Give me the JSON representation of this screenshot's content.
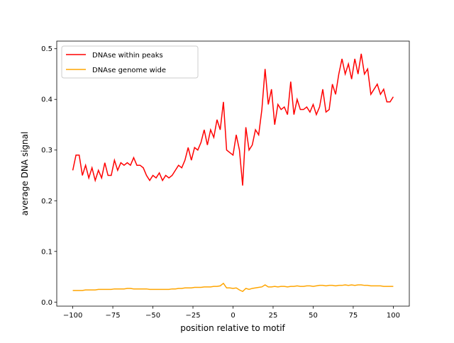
{
  "chart_data": {
    "type": "line",
    "xlabel": "position relative to motif",
    "ylabel": "average DNA signal",
    "x": [
      -100,
      -98,
      -96,
      -94,
      -92,
      -90,
      -88,
      -86,
      -84,
      -82,
      -80,
      -78,
      -76,
      -74,
      -72,
      -70,
      -68,
      -66,
      -64,
      -62,
      -60,
      -58,
      -56,
      -54,
      -52,
      -50,
      -48,
      -46,
      -44,
      -42,
      -40,
      -38,
      -36,
      -34,
      -32,
      -30,
      -28,
      -26,
      -24,
      -22,
      -20,
      -18,
      -16,
      -14,
      -12,
      -10,
      -8,
      -6,
      -4,
      -2,
      0,
      2,
      4,
      6,
      8,
      10,
      12,
      14,
      16,
      18,
      20,
      22,
      24,
      26,
      28,
      30,
      32,
      34,
      36,
      38,
      40,
      42,
      44,
      46,
      48,
      50,
      52,
      54,
      56,
      58,
      60,
      62,
      64,
      66,
      68,
      70,
      72,
      74,
      76,
      78,
      80,
      82,
      84,
      86,
      88,
      90,
      92,
      94,
      96,
      98,
      100
    ],
    "series": [
      {
        "name": "DNAse within peaks",
        "color": "#ff0000",
        "values": [
          0.26,
          0.29,
          0.29,
          0.25,
          0.27,
          0.245,
          0.265,
          0.24,
          0.26,
          0.245,
          0.275,
          0.25,
          0.25,
          0.28,
          0.26,
          0.275,
          0.27,
          0.275,
          0.27,
          0.285,
          0.27,
          0.27,
          0.265,
          0.25,
          0.24,
          0.25,
          0.245,
          0.255,
          0.24,
          0.25,
          0.245,
          0.25,
          0.26,
          0.27,
          0.265,
          0.28,
          0.305,
          0.28,
          0.305,
          0.3,
          0.315,
          0.34,
          0.31,
          0.34,
          0.325,
          0.36,
          0.34,
          0.395,
          0.3,
          0.295,
          0.29,
          0.33,
          0.3,
          0.23,
          0.345,
          0.3,
          0.31,
          0.34,
          0.33,
          0.38,
          0.46,
          0.39,
          0.42,
          0.35,
          0.39,
          0.38,
          0.385,
          0.37,
          0.435,
          0.37,
          0.4,
          0.38,
          0.38,
          0.385,
          0.375,
          0.39,
          0.37,
          0.385,
          0.42,
          0.375,
          0.38,
          0.43,
          0.41,
          0.45,
          0.48,
          0.45,
          0.47,
          0.44,
          0.48,
          0.45,
          0.49,
          0.45,
          0.46,
          0.41,
          0.42,
          0.43,
          0.41,
          0.42,
          0.395,
          0.395,
          0.405
        ]
      },
      {
        "name": "DNAse genome wide",
        "color": "#ffa500",
        "values": [
          0.023,
          0.023,
          0.023,
          0.023,
          0.024,
          0.024,
          0.024,
          0.024,
          0.025,
          0.025,
          0.025,
          0.025,
          0.025,
          0.026,
          0.026,
          0.026,
          0.026,
          0.027,
          0.027,
          0.026,
          0.026,
          0.026,
          0.026,
          0.026,
          0.025,
          0.025,
          0.025,
          0.025,
          0.025,
          0.025,
          0.025,
          0.026,
          0.026,
          0.027,
          0.027,
          0.028,
          0.028,
          0.028,
          0.029,
          0.029,
          0.029,
          0.03,
          0.03,
          0.03,
          0.031,
          0.031,
          0.032,
          0.037,
          0.028,
          0.028,
          0.027,
          0.028,
          0.024,
          0.021,
          0.027,
          0.025,
          0.027,
          0.028,
          0.029,
          0.03,
          0.034,
          0.03,
          0.03,
          0.031,
          0.03,
          0.031,
          0.031,
          0.03,
          0.031,
          0.031,
          0.032,
          0.031,
          0.031,
          0.032,
          0.032,
          0.031,
          0.032,
          0.033,
          0.033,
          0.032,
          0.033,
          0.033,
          0.032,
          0.033,
          0.033,
          0.034,
          0.033,
          0.034,
          0.033,
          0.034,
          0.034,
          0.033,
          0.033,
          0.032,
          0.032,
          0.032,
          0.032,
          0.031,
          0.031,
          0.031,
          0.031
        ]
      }
    ],
    "xlim": [
      -110,
      110
    ],
    "ylim": [
      -0.008,
      0.515
    ],
    "xticks": [
      {
        "value": -100,
        "label": "−100"
      },
      {
        "value": -75,
        "label": "−75"
      },
      {
        "value": -50,
        "label": "−50"
      },
      {
        "value": -25,
        "label": "−25"
      },
      0,
      25,
      50,
      75,
      100
    ],
    "yticks": [
      {
        "value": 0,
        "label": "0.0"
      },
      0.1,
      0.2,
      0.3,
      0.4,
      0.5
    ],
    "legend": "upper left",
    "grid": false
  }
}
